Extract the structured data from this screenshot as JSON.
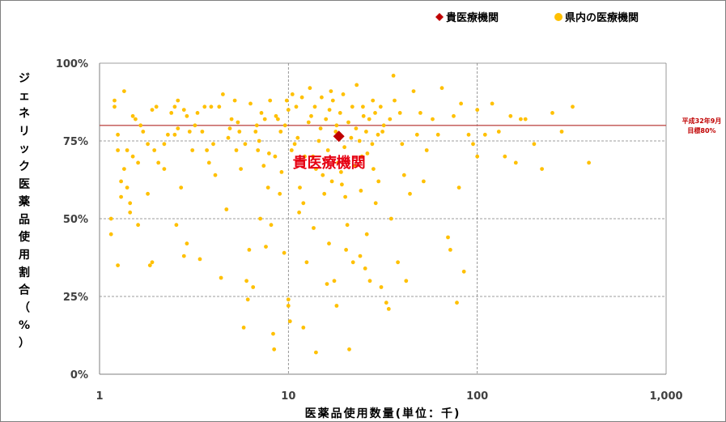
{
  "chart_data": {
    "type": "scatter",
    "xscale": "log",
    "xlim": [
      1,
      1000
    ],
    "ylim": [
      0,
      100
    ],
    "x_ticks": [
      "1",
      "10",
      "100",
      "1,000"
    ],
    "y_ticks": [
      "0%",
      "25%",
      "50%",
      "75%",
      "100%"
    ],
    "xlabel": "医薬品使用数量(単位：千)",
    "ylabel_chars": [
      "ジ",
      "ェ",
      "ネ",
      "リ",
      "ッ",
      "ク",
      "医",
      "薬",
      "品",
      "使",
      "用",
      "割",
      "合",
      "（",
      "%",
      "）"
    ],
    "grid": true,
    "legend_position": "top-right",
    "reference_line": {
      "y": 80,
      "label_lines": [
        "平成32年9月",
        "目標80%"
      ],
      "color": "#c0504d"
    },
    "highlight_label": "貴医療機関",
    "series": [
      {
        "name": "貴医療機関",
        "color": "#c00000",
        "marker": "diamond",
        "points": [
          [
            18.5,
            76.5
          ]
        ]
      },
      {
        "name": "県内の医療機関",
        "color": "#ffc000",
        "marker": "circle",
        "points": [
          [
            1.15,
            50
          ],
          [
            1.15,
            45
          ],
          [
            1.2,
            86
          ],
          [
            1.2,
            88
          ],
          [
            1.25,
            77
          ],
          [
            1.25,
            35
          ],
          [
            1.3,
            57
          ],
          [
            1.35,
            91
          ],
          [
            1.35,
            66
          ],
          [
            1.4,
            60
          ],
          [
            1.45,
            55
          ],
          [
            1.5,
            83
          ],
          [
            1.55,
            82
          ],
          [
            1.6,
            48
          ],
          [
            1.4,
            72
          ],
          [
            1.5,
            70
          ],
          [
            1.3,
            62
          ],
          [
            1.45,
            52
          ],
          [
            1.6,
            68
          ],
          [
            1.7,
            78
          ],
          [
            1.9,
            85
          ],
          [
            1.95,
            72
          ],
          [
            1.85,
            35
          ],
          [
            1.9,
            36
          ],
          [
            1.8,
            58
          ],
          [
            2.0,
            86
          ],
          [
            2.05,
            68
          ],
          [
            2.2,
            74
          ],
          [
            2.3,
            77
          ],
          [
            2.4,
            84
          ],
          [
            2.5,
            86
          ],
          [
            2.5,
            77
          ],
          [
            2.55,
            48
          ],
          [
            2.6,
            88
          ],
          [
            2.7,
            60
          ],
          [
            2.8,
            85
          ],
          [
            2.8,
            38
          ],
          [
            2.9,
            42
          ],
          [
            3.0,
            78
          ],
          [
            3.1,
            72
          ],
          [
            3.3,
            84
          ],
          [
            3.4,
            37
          ],
          [
            3.5,
            78
          ],
          [
            3.6,
            86
          ],
          [
            3.7,
            72
          ],
          [
            3.9,
            86
          ],
          [
            4.0,
            74
          ],
          [
            4.1,
            64
          ],
          [
            4.3,
            86
          ],
          [
            4.4,
            31
          ],
          [
            4.5,
            90
          ],
          [
            4.7,
            53
          ],
          [
            4.8,
            76
          ],
          [
            5.0,
            82
          ],
          [
            5.2,
            88
          ],
          [
            5.3,
            72
          ],
          [
            5.5,
            78
          ],
          [
            5.6,
            66
          ],
          [
            5.8,
            15
          ],
          [
            6.0,
            30
          ],
          [
            6.1,
            24
          ],
          [
            6.2,
            40
          ],
          [
            6.3,
            87
          ],
          [
            6.5,
            28
          ],
          [
            6.7,
            78
          ],
          [
            6.9,
            72
          ],
          [
            7.1,
            50
          ],
          [
            7.2,
            84
          ],
          [
            7.4,
            67
          ],
          [
            7.6,
            41
          ],
          [
            7.8,
            60
          ],
          [
            8.0,
            88
          ],
          [
            8.1,
            48
          ],
          [
            8.3,
            13
          ],
          [
            8.4,
            8
          ],
          [
            8.5,
            70
          ],
          [
            8.8,
            82
          ],
          [
            9.0,
            58
          ],
          [
            9.2,
            65
          ],
          [
            9.5,
            39
          ],
          [
            9.6,
            80
          ],
          [
            10,
            22
          ],
          [
            10,
            24
          ],
          [
            10,
            85
          ],
          [
            10.2,
            17
          ],
          [
            10.5,
            90
          ],
          [
            10.8,
            74
          ],
          [
            11,
            86
          ],
          [
            11.5,
            60
          ],
          [
            12,
            55
          ],
          [
            12,
            15
          ],
          [
            12.5,
            36
          ],
          [
            13,
            92
          ],
          [
            13.5,
            70
          ],
          [
            14,
            66
          ],
          [
            14,
            7
          ],
          [
            14.5,
            75
          ],
          [
            15,
            89
          ],
          [
            15.5,
            58
          ],
          [
            16,
            29
          ],
          [
            16.5,
            85
          ],
          [
            17,
            62
          ],
          [
            17.2,
            88
          ],
          [
            17.5,
            30
          ],
          [
            18,
            80
          ],
          [
            18,
            22
          ],
          [
            19,
            65
          ],
          [
            19.5,
            90
          ],
          [
            20,
            57
          ],
          [
            20.5,
            48
          ],
          [
            21,
            8
          ],
          [
            21.5,
            76
          ],
          [
            22,
            36
          ],
          [
            23,
            93
          ],
          [
            24,
            38
          ],
          [
            24.5,
            70
          ],
          [
            25,
            83
          ],
          [
            26,
            45
          ],
          [
            27,
            30
          ],
          [
            28,
            88
          ],
          [
            29,
            55
          ],
          [
            30,
            62
          ],
          [
            31,
            28
          ],
          [
            32,
            80
          ],
          [
            33,
            23
          ],
          [
            34,
            21
          ],
          [
            35,
            50
          ],
          [
            36,
            96
          ],
          [
            38,
            36
          ],
          [
            40,
            74
          ],
          [
            42,
            30
          ],
          [
            44,
            58
          ],
          [
            46,
            91
          ],
          [
            48,
            77
          ],
          [
            50,
            84
          ],
          [
            52,
            62
          ],
          [
            54,
            72
          ],
          [
            58,
            82
          ],
          [
            62,
            77
          ],
          [
            65,
            92
          ],
          [
            70,
            44
          ],
          [
            72,
            40
          ],
          [
            75,
            83
          ],
          [
            78,
            23
          ],
          [
            80,
            60
          ],
          [
            82,
            87
          ],
          [
            85,
            33
          ],
          [
            90,
            77
          ],
          [
            95,
            74
          ],
          [
            100,
            85
          ],
          [
            100,
            70
          ],
          [
            110,
            77
          ],
          [
            120,
            87
          ],
          [
            130,
            78
          ],
          [
            140,
            70
          ],
          [
            150,
            83
          ],
          [
            160,
            68
          ],
          [
            170,
            82
          ],
          [
            180,
            82
          ],
          [
            200,
            74
          ],
          [
            220,
            66
          ],
          [
            250,
            84
          ],
          [
            280,
            78
          ],
          [
            320,
            86
          ],
          [
            390,
            68
          ],
          [
            11.2,
            76
          ],
          [
            12.8,
            81
          ],
          [
            13.2,
            83
          ],
          [
            14.8,
            79
          ],
          [
            15.8,
            82
          ],
          [
            16.2,
            72
          ],
          [
            17.8,
            78
          ],
          [
            18.8,
            84
          ],
          [
            19.8,
            73
          ],
          [
            20.8,
            81
          ],
          [
            21.8,
            86
          ],
          [
            22.8,
            79
          ],
          [
            23.8,
            75
          ],
          [
            24.8,
            86
          ],
          [
            25.8,
            78
          ],
          [
            26.8,
            82
          ],
          [
            27.8,
            74
          ],
          [
            28.8,
            84
          ],
          [
            29.8,
            77
          ],
          [
            30.8,
            86
          ],
          [
            8.6,
            83
          ],
          [
            9.1,
            78
          ],
          [
            9.8,
            88
          ],
          [
            10.4,
            72
          ],
          [
            11.8,
            89
          ],
          [
            12.2,
            70
          ],
          [
            13.8,
            86
          ],
          [
            15.2,
            64
          ],
          [
            16.8,
            91
          ],
          [
            18.3,
            68
          ],
          [
            19.2,
            61
          ],
          [
            22.5,
            67
          ],
          [
            24.2,
            59
          ],
          [
            26.2,
            71
          ],
          [
            28.2,
            66
          ],
          [
            31.5,
            78
          ],
          [
            34.5,
            82
          ],
          [
            36.5,
            88
          ],
          [
            39,
            84
          ],
          [
            41,
            64
          ],
          [
            6.8,
            80
          ],
          [
            7.0,
            75
          ],
          [
            7.5,
            82
          ],
          [
            7.9,
            71
          ],
          [
            5.4,
            81
          ],
          [
            5.9,
            74
          ],
          [
            4.9,
            79
          ],
          [
            3.8,
            68
          ],
          [
            3.2,
            80
          ],
          [
            2.9,
            83
          ],
          [
            2.2,
            66
          ],
          [
            2.6,
            79
          ],
          [
            1.8,
            74
          ],
          [
            1.65,
            80
          ],
          [
            1.25,
            72
          ],
          [
            11.4,
            52
          ],
          [
            13.6,
            47
          ],
          [
            16.4,
            42
          ],
          [
            20.2,
            40
          ],
          [
            25.5,
            34
          ]
        ]
      }
    ]
  }
}
